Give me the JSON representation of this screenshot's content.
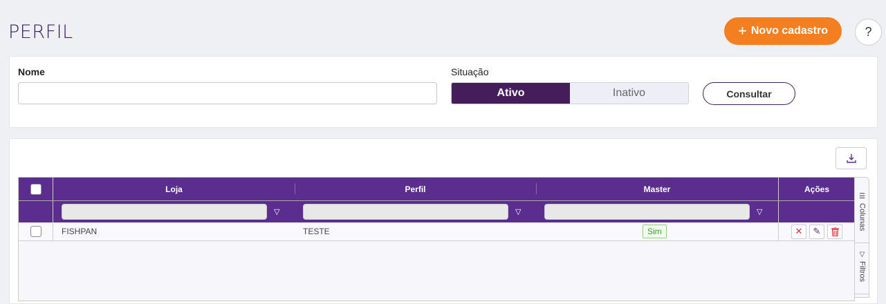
{
  "header": {
    "title": "PERFIL",
    "new_button": "Novo cadastro",
    "help": "?"
  },
  "filters": {
    "nome_label": "Nome",
    "nome_value": "",
    "nome_placeholder": "",
    "situacao_label": "Situação",
    "situacao_options": [
      "Ativo",
      "Inativo"
    ],
    "situacao_selected": "Ativo",
    "consultar": "Consultar"
  },
  "grid": {
    "columns": [
      "Loja",
      "Perfil",
      "Master",
      "Ações"
    ],
    "rows": [
      {
        "loja": "FISHPAN",
        "perfil": "TESTE",
        "master": "Sim",
        "selected": false
      }
    ],
    "side_tabs": [
      "Colunas",
      "Filtros"
    ]
  },
  "colors": {
    "primary": "#5b2d8e",
    "dark": "#451d5a",
    "accent": "#f47f20"
  }
}
